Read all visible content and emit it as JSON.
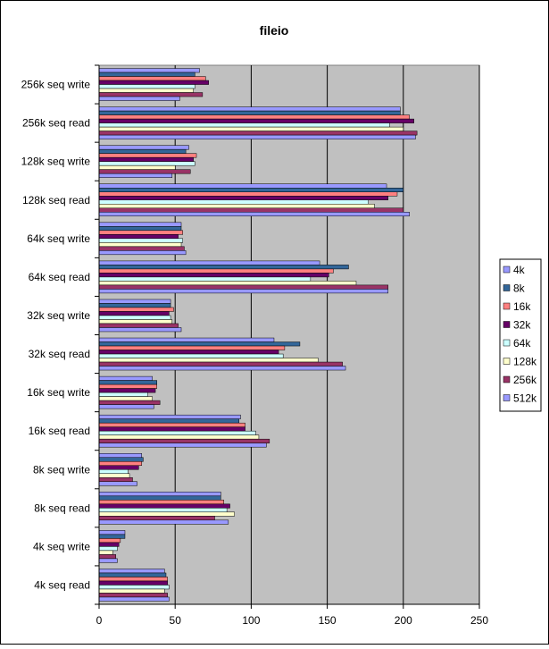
{
  "chart_data": {
    "type": "bar",
    "orientation": "horizontal",
    "title": "fileio",
    "xlabel": "",
    "ylabel": "",
    "xlim": [
      0,
      250
    ],
    "x_ticks": [
      0,
      50,
      100,
      150,
      200,
      250
    ],
    "grid": true,
    "legend_position": "right",
    "categories": [
      "256k seq write",
      "256k seq read",
      "128k seq write",
      "128k seq read",
      "64k seq write",
      "64k seq read",
      "32k seq write",
      "32k seq read",
      "16k seq write",
      "16k seq read",
      "8k seq write",
      "8k seq read",
      "4k seq write",
      "4k seq read"
    ],
    "series": [
      {
        "name": "4k",
        "color": "#9999ff",
        "values": [
          66,
          198,
          59,
          189,
          54,
          145,
          47,
          115,
          35,
          93,
          28,
          80,
          17,
          43
        ]
      },
      {
        "name": "8k",
        "color": "#336699",
        "values": [
          63,
          198,
          57,
          200,
          54,
          164,
          47,
          132,
          38,
          92,
          29,
          80,
          17,
          44
        ]
      },
      {
        "name": "16k",
        "color": "#ff8080",
        "values": [
          70,
          204,
          64,
          196,
          55,
          154,
          49,
          122,
          38,
          96,
          28,
          82,
          14,
          45
        ]
      },
      {
        "name": "32k",
        "color": "#660066",
        "values": [
          72,
          207,
          62,
          190,
          52,
          151,
          46,
          118,
          37,
          96,
          26,
          86,
          13,
          45
        ]
      },
      {
        "name": "64k",
        "color": "#ccffff",
        "values": [
          63,
          191,
          63,
          177,
          55,
          139,
          47,
          121,
          32,
          103,
          19,
          84,
          12,
          46
        ]
      },
      {
        "name": "128k",
        "color": "#ffffcc",
        "values": [
          62,
          200,
          50,
          181,
          54,
          169,
          48,
          144,
          35,
          105,
          20,
          89,
          9,
          43
        ]
      },
      {
        "name": "256k",
        "color": "#993366",
        "values": [
          68,
          209,
          60,
          200,
          56,
          190,
          52,
          160,
          40,
          112,
          22,
          76,
          11,
          45
        ]
      },
      {
        "name": "512k",
        "color": "#9999ff",
        "values": [
          53,
          208,
          48,
          204,
          57,
          190,
          54,
          162,
          36,
          110,
          25,
          85,
          12,
          46
        ]
      }
    ]
  }
}
